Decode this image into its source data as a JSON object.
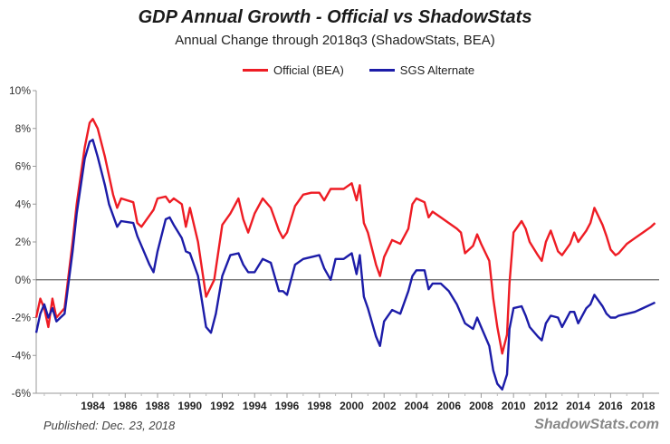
{
  "chart_data": {
    "type": "line",
    "title": "GDP Annual Growth - Official vs ShadowStats",
    "subtitle": "Annual Change through 2018q3  (ShadowStats, BEA)",
    "xlabel": "",
    "ylabel": "",
    "xlim": [
      1980.5,
      2019.0
    ],
    "ylim": [
      -6,
      10
    ],
    "y_ticks": [
      -6,
      -4,
      -2,
      0,
      2,
      4,
      6,
      8,
      10
    ],
    "y_tick_labels": [
      "-6%",
      "-4%",
      "-2%",
      "0%",
      "2%",
      "4%",
      "6%",
      "8%",
      "10%"
    ],
    "x_ticks": [
      1984,
      1986,
      1988,
      1990,
      1992,
      1994,
      1996,
      1998,
      2000,
      2002,
      2004,
      2006,
      2008,
      2010,
      2012,
      2014,
      2016,
      2018
    ],
    "x_tick_labels": [
      "1984",
      "1986",
      "1988",
      "1990",
      "1992",
      "1994",
      "1996",
      "1998",
      "2000",
      "2002",
      "2004",
      "2006",
      "2008",
      "2010",
      "2012",
      "2014",
      "2016",
      "2018"
    ],
    "grid": false,
    "legend_position": "top",
    "series": [
      {
        "name": "Official (BEA)",
        "color": "#ee1c24",
        "points": [
          [
            1980.5,
            -2.0
          ],
          [
            1980.75,
            -1.0
          ],
          [
            1981.0,
            -1.5
          ],
          [
            1981.25,
            -2.5
          ],
          [
            1981.5,
            -1.0
          ],
          [
            1981.75,
            -2.0
          ],
          [
            1982.25,
            -1.5
          ],
          [
            1982.75,
            2.0
          ],
          [
            1983.0,
            4.0
          ],
          [
            1983.5,
            7.0
          ],
          [
            1983.8,
            8.3
          ],
          [
            1984.0,
            8.5
          ],
          [
            1984.3,
            8.0
          ],
          [
            1984.75,
            6.5
          ],
          [
            1985.0,
            5.5
          ],
          [
            1985.25,
            4.5
          ],
          [
            1985.5,
            3.8
          ],
          [
            1985.75,
            4.3
          ],
          [
            1986.5,
            4.1
          ],
          [
            1986.75,
            3.0
          ],
          [
            1987.0,
            2.8
          ],
          [
            1987.5,
            3.4
          ],
          [
            1987.75,
            3.7
          ],
          [
            1988.0,
            4.3
          ],
          [
            1988.5,
            4.4
          ],
          [
            1988.75,
            4.1
          ],
          [
            1989.0,
            4.3
          ],
          [
            1989.5,
            4.0
          ],
          [
            1989.75,
            2.8
          ],
          [
            1990.0,
            3.8
          ],
          [
            1990.5,
            2.0
          ],
          [
            1991.0,
            -0.9
          ],
          [
            1991.5,
            0.0
          ],
          [
            1992.0,
            2.9
          ],
          [
            1992.5,
            3.5
          ],
          [
            1993.0,
            4.3
          ],
          [
            1993.3,
            3.2
          ],
          [
            1993.6,
            2.5
          ],
          [
            1994.0,
            3.5
          ],
          [
            1994.5,
            4.3
          ],
          [
            1995.0,
            3.8
          ],
          [
            1995.5,
            2.6
          ],
          [
            1995.75,
            2.2
          ],
          [
            1996.0,
            2.5
          ],
          [
            1996.5,
            3.9
          ],
          [
            1997.0,
            4.5
          ],
          [
            1997.5,
            4.6
          ],
          [
            1998.0,
            4.6
          ],
          [
            1998.3,
            4.2
          ],
          [
            1998.7,
            4.8
          ],
          [
            1999.0,
            4.8
          ],
          [
            1999.5,
            4.8
          ],
          [
            2000.0,
            5.1
          ],
          [
            2000.3,
            4.2
          ],
          [
            2000.5,
            5.0
          ],
          [
            2000.75,
            3.0
          ],
          [
            2001.0,
            2.5
          ],
          [
            2001.5,
            0.8
          ],
          [
            2001.75,
            0.2
          ],
          [
            2002.0,
            1.2
          ],
          [
            2002.5,
            2.1
          ],
          [
            2003.0,
            1.9
          ],
          [
            2003.5,
            2.7
          ],
          [
            2003.75,
            4.0
          ],
          [
            2004.0,
            4.3
          ],
          [
            2004.5,
            4.1
          ],
          [
            2004.75,
            3.3
          ],
          [
            2005.0,
            3.6
          ],
          [
            2005.5,
            3.3
          ],
          [
            2006.0,
            3.0
          ],
          [
            2006.5,
            2.7
          ],
          [
            2006.75,
            2.5
          ],
          [
            2007.0,
            1.4
          ],
          [
            2007.5,
            1.8
          ],
          [
            2007.75,
            2.4
          ],
          [
            2008.0,
            1.9
          ],
          [
            2008.5,
            1.0
          ],
          [
            2008.75,
            -1.0
          ],
          [
            2009.0,
            -2.5
          ],
          [
            2009.3,
            -3.9
          ],
          [
            2009.6,
            -2.9
          ],
          [
            2009.75,
            -0.2
          ],
          [
            2010.0,
            2.5
          ],
          [
            2010.5,
            3.1
          ],
          [
            2010.75,
            2.7
          ],
          [
            2011.0,
            2.0
          ],
          [
            2011.5,
            1.3
          ],
          [
            2011.75,
            1.0
          ],
          [
            2012.0,
            2.0
          ],
          [
            2012.3,
            2.6
          ],
          [
            2012.75,
            1.5
          ],
          [
            2013.0,
            1.3
          ],
          [
            2013.5,
            1.9
          ],
          [
            2013.75,
            2.5
          ],
          [
            2014.0,
            2.0
          ],
          [
            2014.5,
            2.6
          ],
          [
            2014.75,
            3.0
          ],
          [
            2015.0,
            3.8
          ],
          [
            2015.5,
            2.9
          ],
          [
            2015.75,
            2.3
          ],
          [
            2016.0,
            1.6
          ],
          [
            2016.3,
            1.3
          ],
          [
            2016.5,
            1.4
          ],
          [
            2017.0,
            1.9
          ],
          [
            2017.5,
            2.2
          ],
          [
            2018.0,
            2.5
          ],
          [
            2018.5,
            2.8
          ],
          [
            2018.75,
            3.0
          ]
        ]
      },
      {
        "name": "SGS Alternate",
        "color": "#1c1ca8",
        "points": [
          [
            1980.5,
            -2.8
          ],
          [
            1980.75,
            -1.8
          ],
          [
            1981.0,
            -1.3
          ],
          [
            1981.25,
            -2.0
          ],
          [
            1981.5,
            -1.5
          ],
          [
            1981.75,
            -2.2
          ],
          [
            1982.25,
            -1.8
          ],
          [
            1982.75,
            1.5
          ],
          [
            1983.0,
            3.5
          ],
          [
            1983.5,
            6.4
          ],
          [
            1983.8,
            7.3
          ],
          [
            1984.0,
            7.4
          ],
          [
            1984.3,
            6.5
          ],
          [
            1984.75,
            5.0
          ],
          [
            1985.0,
            4.0
          ],
          [
            1985.25,
            3.4
          ],
          [
            1985.5,
            2.8
          ],
          [
            1985.75,
            3.1
          ],
          [
            1986.5,
            3.0
          ],
          [
            1986.75,
            2.3
          ],
          [
            1987.0,
            1.8
          ],
          [
            1987.5,
            0.8
          ],
          [
            1987.75,
            0.4
          ],
          [
            1988.0,
            1.5
          ],
          [
            1988.5,
            3.2
          ],
          [
            1988.75,
            3.3
          ],
          [
            1989.0,
            2.9
          ],
          [
            1989.5,
            2.2
          ],
          [
            1989.75,
            1.5
          ],
          [
            1990.0,
            1.4
          ],
          [
            1990.5,
            0.2
          ],
          [
            1991.0,
            -2.5
          ],
          [
            1991.3,
            -2.8
          ],
          [
            1991.6,
            -1.8
          ],
          [
            1992.0,
            0.2
          ],
          [
            1992.5,
            1.3
          ],
          [
            1993.0,
            1.4
          ],
          [
            1993.3,
            0.8
          ],
          [
            1993.6,
            0.4
          ],
          [
            1994.0,
            0.4
          ],
          [
            1994.5,
            1.1
          ],
          [
            1995.0,
            0.9
          ],
          [
            1995.5,
            -0.6
          ],
          [
            1995.75,
            -0.6
          ],
          [
            1996.0,
            -0.8
          ],
          [
            1996.5,
            0.8
          ],
          [
            1997.0,
            1.1
          ],
          [
            1997.5,
            1.2
          ],
          [
            1998.0,
            1.3
          ],
          [
            1998.3,
            0.6
          ],
          [
            1998.7,
            0.0
          ],
          [
            1999.0,
            1.1
          ],
          [
            1999.5,
            1.1
          ],
          [
            2000.0,
            1.4
          ],
          [
            2000.3,
            0.3
          ],
          [
            2000.5,
            1.3
          ],
          [
            2000.75,
            -0.9
          ],
          [
            2001.0,
            -1.5
          ],
          [
            2001.5,
            -3.0
          ],
          [
            2001.75,
            -3.5
          ],
          [
            2002.0,
            -2.2
          ],
          [
            2002.5,
            -1.6
          ],
          [
            2003.0,
            -1.8
          ],
          [
            2003.5,
            -0.6
          ],
          [
            2003.75,
            0.2
          ],
          [
            2004.0,
            0.5
          ],
          [
            2004.5,
            0.5
          ],
          [
            2004.75,
            -0.5
          ],
          [
            2005.0,
            -0.2
          ],
          [
            2005.5,
            -0.2
          ],
          [
            2006.0,
            -0.6
          ],
          [
            2006.5,
            -1.3
          ],
          [
            2006.75,
            -1.8
          ],
          [
            2007.0,
            -2.3
          ],
          [
            2007.5,
            -2.6
          ],
          [
            2007.75,
            -2.0
          ],
          [
            2008.0,
            -2.5
          ],
          [
            2008.5,
            -3.5
          ],
          [
            2008.75,
            -4.8
          ],
          [
            2009.0,
            -5.5
          ],
          [
            2009.3,
            -5.8
          ],
          [
            2009.6,
            -5.0
          ],
          [
            2009.75,
            -2.6
          ],
          [
            2010.0,
            -1.5
          ],
          [
            2010.5,
            -1.4
          ],
          [
            2010.75,
            -1.9
          ],
          [
            2011.0,
            -2.5
          ],
          [
            2011.5,
            -3.0
          ],
          [
            2011.75,
            -3.2
          ],
          [
            2012.0,
            -2.3
          ],
          [
            2012.3,
            -1.9
          ],
          [
            2012.75,
            -2.0
          ],
          [
            2013.0,
            -2.5
          ],
          [
            2013.5,
            -1.7
          ],
          [
            2013.75,
            -1.7
          ],
          [
            2014.0,
            -2.3
          ],
          [
            2014.5,
            -1.5
          ],
          [
            2014.75,
            -1.3
          ],
          [
            2015.0,
            -0.8
          ],
          [
            2015.5,
            -1.4
          ],
          [
            2015.75,
            -1.8
          ],
          [
            2016.0,
            -2.0
          ],
          [
            2016.3,
            -2.0
          ],
          [
            2016.5,
            -1.9
          ],
          [
            2017.0,
            -1.8
          ],
          [
            2017.5,
            -1.7
          ],
          [
            2018.0,
            -1.5
          ],
          [
            2018.5,
            -1.3
          ],
          [
            2018.75,
            -1.2
          ]
        ]
      }
    ]
  },
  "footer": {
    "published": "Published: Dec. 23, 2018",
    "source": "ShadowStats.com"
  }
}
